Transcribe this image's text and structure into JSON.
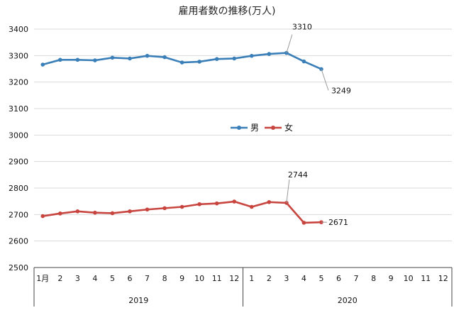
{
  "chart_data": {
    "type": "line",
    "title": "雇用者数の推移(万人)",
    "ylim": [
      2500,
      3400
    ],
    "yticks": [
      2500,
      2600,
      2700,
      2800,
      2900,
      3000,
      3100,
      3200,
      3300,
      3400
    ],
    "grid": true,
    "legend_position": "center",
    "categories": [
      "1月",
      "2",
      "3",
      "4",
      "5",
      "6",
      "7",
      "8",
      "9",
      "10",
      "11",
      "12",
      "1",
      "2",
      "3",
      "4",
      "5",
      "6",
      "7",
      "8",
      "9",
      "10",
      "11",
      "12"
    ],
    "year_groups": [
      {
        "label": "2019",
        "count": 12
      },
      {
        "label": "2020",
        "count": 12
      }
    ],
    "series": [
      {
        "name": "男",
        "color": "#3b7fb8",
        "values": [
          3266,
          3284,
          3284,
          3282,
          3292,
          3289,
          3299,
          3294,
          3274,
          3277,
          3287,
          3289,
          3299,
          3306,
          3310,
          3278,
          3249,
          null,
          null,
          null,
          null,
          null,
          null,
          null
        ]
      },
      {
        "name": "女",
        "color": "#c8453f",
        "values": [
          2694,
          2704,
          2712,
          2707,
          2705,
          2712,
          2719,
          2724,
          2729,
          2739,
          2742,
          2749,
          2729,
          2747,
          2744,
          2669,
          2671,
          null,
          null,
          null,
          null,
          null,
          null,
          null
        ]
      }
    ],
    "annotations": [
      {
        "series": 0,
        "index": 14,
        "text": "3310"
      },
      {
        "series": 0,
        "index": 16,
        "text": "3249"
      },
      {
        "series": 1,
        "index": 14,
        "text": "2744"
      },
      {
        "series": 1,
        "index": 16,
        "text": "2671"
      }
    ]
  }
}
